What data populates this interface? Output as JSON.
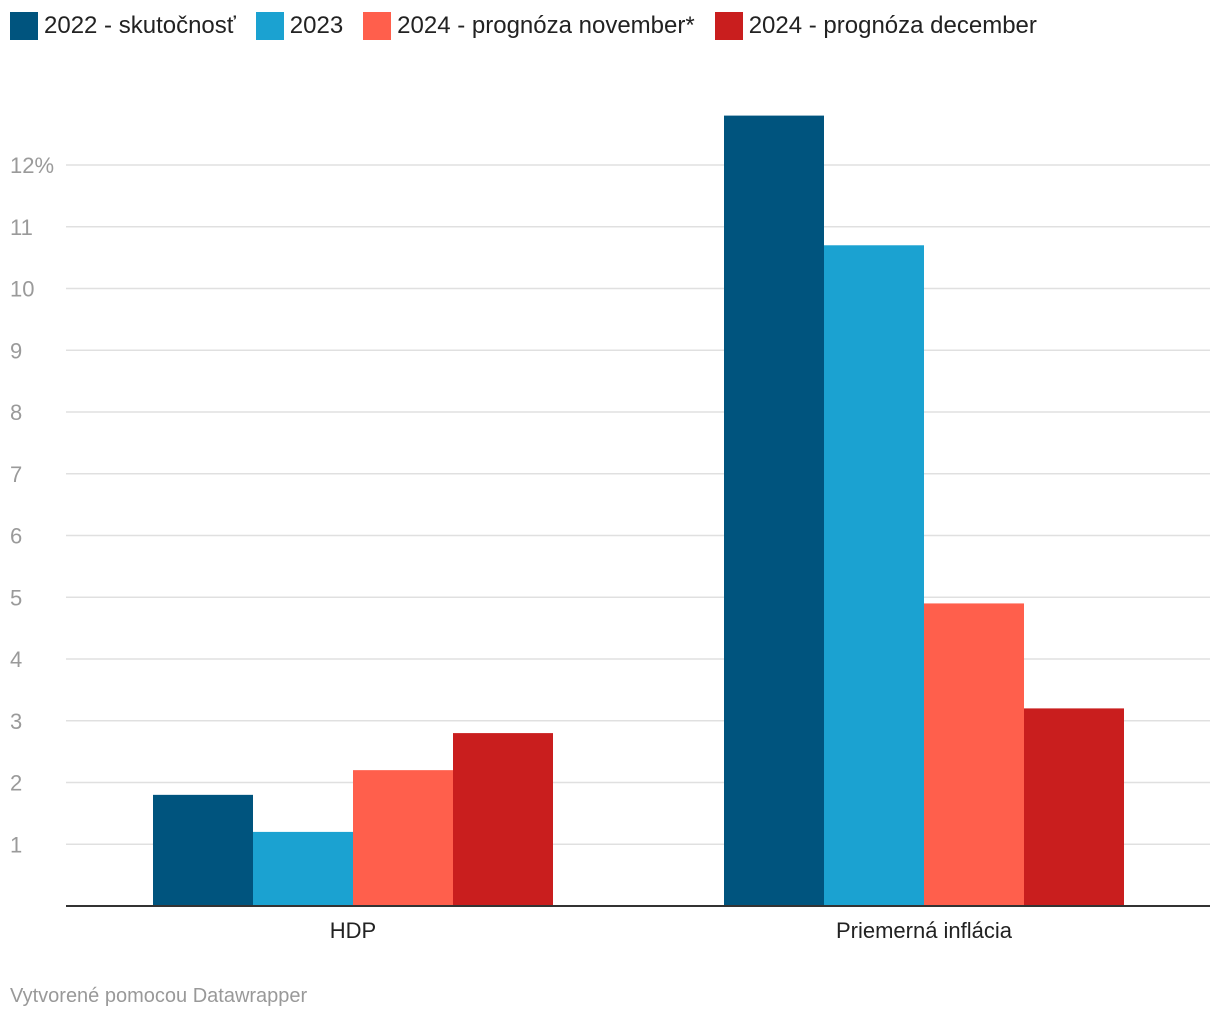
{
  "chart_data": {
    "type": "bar",
    "categories": [
      "HDP",
      "Priemerná inflácia"
    ],
    "series": [
      {
        "name": "2022 - skutočnosť",
        "color": "#00547e",
        "values": [
          1.8,
          12.8
        ]
      },
      {
        "name": "2023",
        "color": "#1ba2d1",
        "values": [
          1.2,
          10.7
        ]
      },
      {
        "name": "2024 - prognóza november*",
        "color": "#ff5f4c",
        "values": [
          2.2,
          4.9
        ]
      },
      {
        "name": "2024 - prognóza december",
        "color": "#c91e1e",
        "values": [
          2.8,
          3.2
        ]
      }
    ],
    "y_ticks": [
      {
        "value": 1,
        "label": "1"
      },
      {
        "value": 2,
        "label": "2"
      },
      {
        "value": 3,
        "label": "3"
      },
      {
        "value": 4,
        "label": "4"
      },
      {
        "value": 5,
        "label": "5"
      },
      {
        "value": 6,
        "label": "6"
      },
      {
        "value": 7,
        "label": "7"
      },
      {
        "value": 8,
        "label": "8"
      },
      {
        "value": 9,
        "label": "9"
      },
      {
        "value": 10,
        "label": "10"
      },
      {
        "value": 11,
        "label": "11"
      },
      {
        "value": 12,
        "label": "12%"
      }
    ],
    "ylim": [
      0,
      12.8
    ],
    "grid": true,
    "legend_position": "top-left"
  },
  "footer": {
    "credit": "Vytvorené pomocou Datawrapper"
  }
}
